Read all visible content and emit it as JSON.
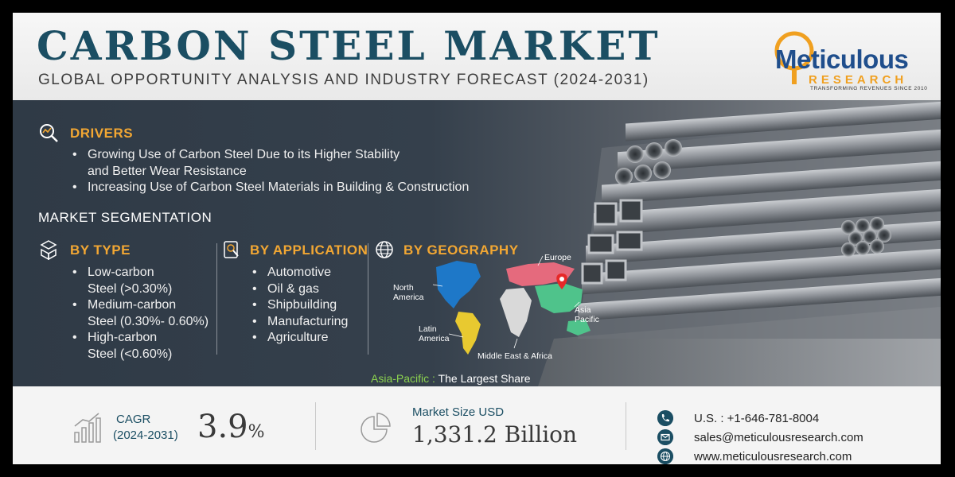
{
  "header": {
    "title": "CARBON STEEL MARKET",
    "subtitle": "GLOBAL OPPORTUNITY ANALYSIS AND INDUSTRY FORECAST (2024-2031)"
  },
  "logo": {
    "name": "Meticulous",
    "sub": "RESEARCH",
    "tagline": "TRANSFORMING REVENUES SINCE 2010"
  },
  "drivers": {
    "heading": "DRIVERS",
    "items": [
      "Growing Use of Carbon Steel Due to its Higher Stability",
      "and Better Wear Resistance",
      "Increasing Use of Carbon Steel Materials in Building & Construction"
    ]
  },
  "segmentation": {
    "heading": "MARKET SEGMENTATION",
    "by_type": {
      "heading": "BY TYPE",
      "items": [
        "Low-carbon",
        "Steel (>0.30%)",
        "Medium-carbon",
        "Steel (0.30%- 0.60%)",
        "High-carbon",
        "Steel (<0.60%)"
      ]
    },
    "by_application": {
      "heading": "BY APPLICATION",
      "items": [
        "Automotive",
        "Oil & gas",
        "Shipbuilding",
        "Manufacturing",
        "Agriculture"
      ]
    },
    "by_geography": {
      "heading": "BY GEOGRAPHY",
      "regions": {
        "north_america_1": "North",
        "north_america_2": "America",
        "europe": "Europe",
        "asia_pacific_1": "Asia",
        "asia_pacific_2": "Pacific",
        "latin_america_1": "Latin",
        "latin_america_2": "America",
        "mea": "Middle East & Africa"
      },
      "share_region": "Asia-Pacific :",
      "share_text": " The Largest Share"
    }
  },
  "footer": {
    "cagr_label": "CAGR",
    "cagr_period": "(2024-2031)",
    "cagr_value": "3.9",
    "cagr_unit": "%",
    "market_label": "Market Size USD",
    "market_value": "1,331.2 Billion",
    "phone": "U.S. : +1-646-781-8004",
    "email": "sales@meticulousresearch.com",
    "website": "www.meticulousresearch.com"
  },
  "colors": {
    "title": "#1b4e63",
    "accent": "#f2a733",
    "panel": "#2f3a46",
    "highlight": "#8bd24f"
  }
}
